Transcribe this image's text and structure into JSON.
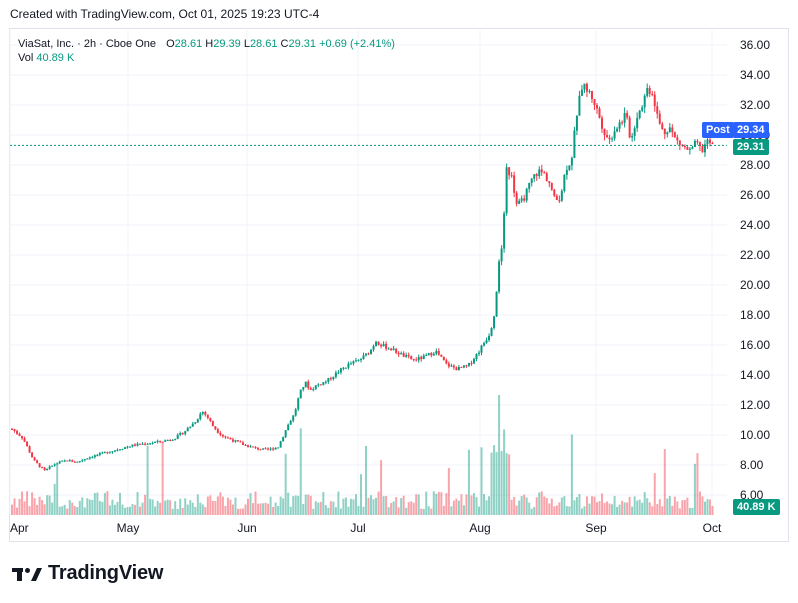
{
  "header": {
    "created_text": "Created with TradingView.com, Oct 01, 2025 19:23 UTC-4"
  },
  "legend": {
    "symbol": "ViaSat, Inc. · 2h · Cboe One",
    "o_label": "O",
    "o_value": "28.61",
    "h_label": "H",
    "h_value": "29.39",
    "l_label": "L",
    "l_value": "28.61",
    "c_label": "C",
    "c_value": "29.31",
    "change": "+0.69 (+2.41%)",
    "vol_label": "Vol",
    "vol_value": "40.89 K"
  },
  "tags": {
    "post_label": "Post",
    "post_price": "29.34",
    "last_price": "29.31",
    "vol_tag": "40.89 K"
  },
  "brand": {
    "name": "TradingView"
  },
  "colors": {
    "up": "#089981",
    "down": "#f23645",
    "post": "#2962ff",
    "grid": "#f0f3fa",
    "text": "#131722"
  },
  "chart_data": {
    "type": "candlestick",
    "y_axis": {
      "min": 6,
      "max": 36,
      "ticks": [
        "36.00",
        "34.00",
        "32.00",
        "30.00",
        "28.00",
        "26.00",
        "24.00",
        "22.00",
        "20.00",
        "18.00",
        "16.00",
        "14.00",
        "12.00",
        "10.00",
        "8.00",
        "6.00"
      ]
    },
    "x_axis": {
      "ticks": [
        "Apr",
        "May",
        "Jun",
        "Jul",
        "Aug",
        "Sep",
        "Oct"
      ]
    },
    "last_close": 29.31,
    "post_price": 29.34,
    "close_path": [
      [
        0,
        10.4
      ],
      [
        4,
        9.8
      ],
      [
        8,
        8.3
      ],
      [
        12,
        7.6
      ],
      [
        16,
        8.1
      ],
      [
        20,
        8.3
      ],
      [
        24,
        8.2
      ],
      [
        28,
        8.5
      ],
      [
        32,
        8.7
      ],
      [
        36,
        8.9
      ],
      [
        40,
        9.1
      ],
      [
        44,
        9.3
      ],
      [
        48,
        9.4
      ],
      [
        52,
        9.5
      ],
      [
        56,
        9.6
      ],
      [
        60,
        9.8
      ],
      [
        64,
        10.3
      ],
      [
        68,
        11.0
      ],
      [
        70,
        11.6
      ],
      [
        72,
        11.2
      ],
      [
        74,
        10.6
      ],
      [
        76,
        10.2
      ],
      [
        78,
        9.9
      ],
      [
        82,
        9.6
      ],
      [
        86,
        9.3
      ],
      [
        90,
        9.1
      ],
      [
        94,
        9.0
      ],
      [
        98,
        9.2
      ],
      [
        102,
        10.8
      ],
      [
        104,
        11.4
      ],
      [
        106,
        12.8
      ],
      [
        108,
        13.5
      ],
      [
        110,
        13.0
      ],
      [
        112,
        13.3
      ],
      [
        116,
        13.6
      ],
      [
        120,
        14.2
      ],
      [
        124,
        14.7
      ],
      [
        128,
        15.0
      ],
      [
        132,
        15.6
      ],
      [
        134,
        16.3
      ],
      [
        136,
        16.0
      ],
      [
        140,
        15.7
      ],
      [
        144,
        15.3
      ],
      [
        148,
        15.0
      ],
      [
        152,
        15.2
      ],
      [
        156,
        15.6
      ],
      [
        160,
        14.7
      ],
      [
        164,
        14.4
      ],
      [
        168,
        14.6
      ],
      [
        172,
        15.6
      ],
      [
        176,
        16.8
      ],
      [
        178,
        18.3
      ],
      [
        179,
        21.2
      ],
      [
        180,
        21.8
      ],
      [
        181,
        23.5
      ],
      [
        182,
        27.8
      ],
      [
        184,
        27.2
      ],
      [
        186,
        25.3
      ],
      [
        188,
        25.6
      ],
      [
        190,
        26.4
      ],
      [
        192,
        27.2
      ],
      [
        194,
        27.6
      ],
      [
        196,
        27.4
      ],
      [
        198,
        26.8
      ],
      [
        200,
        25.6
      ],
      [
        202,
        25.9
      ],
      [
        204,
        27.8
      ],
      [
        206,
        28.3
      ],
      [
        208,
        31.4
      ],
      [
        210,
        33.3
      ],
      [
        212,
        33.0
      ],
      [
        214,
        32.4
      ],
      [
        216,
        31.4
      ],
      [
        218,
        30.3
      ],
      [
        220,
        29.6
      ],
      [
        222,
        30.4
      ],
      [
        224,
        30.8
      ],
      [
        226,
        31.4
      ],
      [
        228,
        29.6
      ],
      [
        230,
        31.2
      ],
      [
        232,
        32.0
      ],
      [
        234,
        33.1
      ],
      [
        236,
        32.8
      ],
      [
        238,
        31.0
      ],
      [
        240,
        30.1
      ],
      [
        242,
        30.6
      ],
      [
        244,
        29.8
      ],
      [
        246,
        29.4
      ],
      [
        248,
        29.1
      ],
      [
        250,
        28.9
      ],
      [
        252,
        29.5
      ],
      [
        254,
        28.9
      ],
      [
        256,
        29.6
      ],
      [
        258,
        29.31
      ]
    ],
    "volume": {
      "last_value": "40.89K"
    }
  }
}
